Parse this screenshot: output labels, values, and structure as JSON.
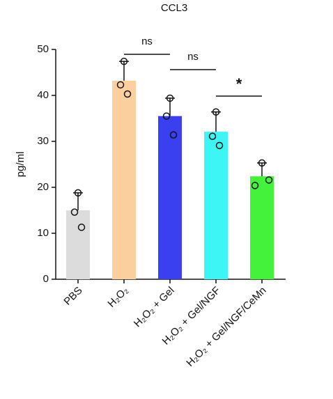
{
  "chart_data": {
    "type": "bar",
    "title": "CCL3",
    "y_label": "pg/ml",
    "categories": [
      "PBS",
      "H₂O₂",
      "H₂O₂ + Gel",
      "H₂O₂ + Gel/NGF",
      "H₂O₂ + Gel/NGF/CeMn"
    ],
    "values": [
      15.0,
      43.2,
      35.5,
      32.1,
      22.4
    ],
    "errors": [
      3.8,
      4.2,
      3.9,
      4.3,
      2.9
    ],
    "points": [
      [
        18.8,
        14.6,
        11.3
      ],
      [
        47.4,
        42.3,
        40.3
      ],
      [
        39.4,
        35.5,
        31.4
      ],
      [
        36.4,
        31.1,
        29.1
      ],
      [
        25.3,
        20.4,
        21.6
      ]
    ],
    "colors": [
      "#dcdcdc",
      "#fccf9e",
      "#3a3ff0",
      "#3ef5f5",
      "#44f23c"
    ],
    "ylim": [
      0,
      50
    ],
    "yticks": [
      0,
      10,
      20,
      30,
      40,
      50
    ],
    "annotations": [
      "ns",
      "ns",
      "*"
    ]
  }
}
